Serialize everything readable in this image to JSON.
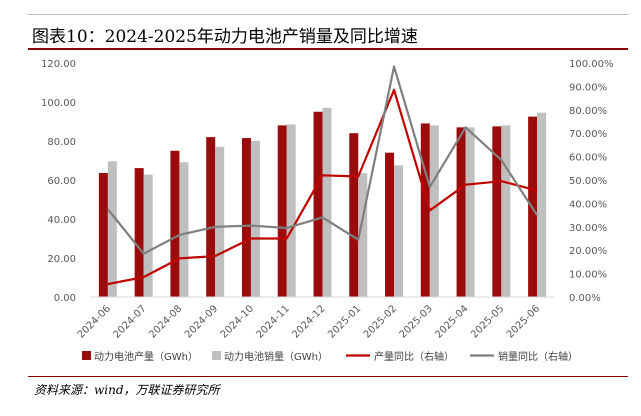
{
  "figure": {
    "title": "图表10：2024-2025年动力电池产销量及同比增速",
    "source": "资料来源：wind，万联证券研究所"
  },
  "colors": {
    "production_bar": "#9b0b0b",
    "sales_bar": "#bfbfbf",
    "production_yoy_line": "#c00000",
    "sales_yoy_line": "#7f7f7f",
    "title_rule": "#8b0000"
  },
  "chart_data": {
    "type": "bar",
    "categories": [
      "2024-06",
      "2024-07",
      "2024-08",
      "2024-09",
      "2024-10",
      "2024-11",
      "2024-12",
      "2025-01",
      "2025-02",
      "2025-03",
      "2025-04",
      "2025-05",
      "2025-06"
    ],
    "y_left": {
      "range": [
        0,
        120
      ],
      "ticks": [
        "0.00",
        "20.00",
        "40.00",
        "60.00",
        "80.00",
        "100.00",
        "120.00"
      ]
    },
    "y_right": {
      "range": [
        0,
        100
      ],
      "ticks": [
        "0.00%",
        "10.00%",
        "20.00%",
        "30.00%",
        "40.00%",
        "50.00%",
        "60.00%",
        "70.00%",
        "80.00%",
        "90.00%",
        "100.00%"
      ]
    },
    "series": [
      {
        "name": "动力电池产量（GWh）",
        "type": "bar",
        "axis": "left",
        "values": [
          63.6,
          66.1,
          75.0,
          82.0,
          81.5,
          88.0,
          95.0,
          84.0,
          74.0,
          89.0,
          87.0,
          87.5,
          92.5
        ]
      },
      {
        "name": "动力电池销量（GWh）",
        "type": "bar",
        "axis": "left",
        "values": [
          69.6,
          62.8,
          69.1,
          77.0,
          80.0,
          88.5,
          97.0,
          63.5,
          67.5,
          88.0,
          87.0,
          88.0,
          94.5
        ]
      },
      {
        "name": "产量同比（右轴）",
        "type": "line",
        "axis": "right",
        "values": [
          5.5,
          8.5,
          16.5,
          17.5,
          25.0,
          25.0,
          52.0,
          51.5,
          88.5,
          37.0,
          48.0,
          49.5,
          45.5
        ]
      },
      {
        "name": "销量同比（右轴）",
        "type": "line",
        "axis": "right",
        "values": [
          37.5,
          18.5,
          26.5,
          30.0,
          30.5,
          29.5,
          34.0,
          24.5,
          98.5,
          47.0,
          72.5,
          58.5,
          35.0
        ]
      }
    ],
    "grid": false,
    "legend_position": "bottom"
  }
}
